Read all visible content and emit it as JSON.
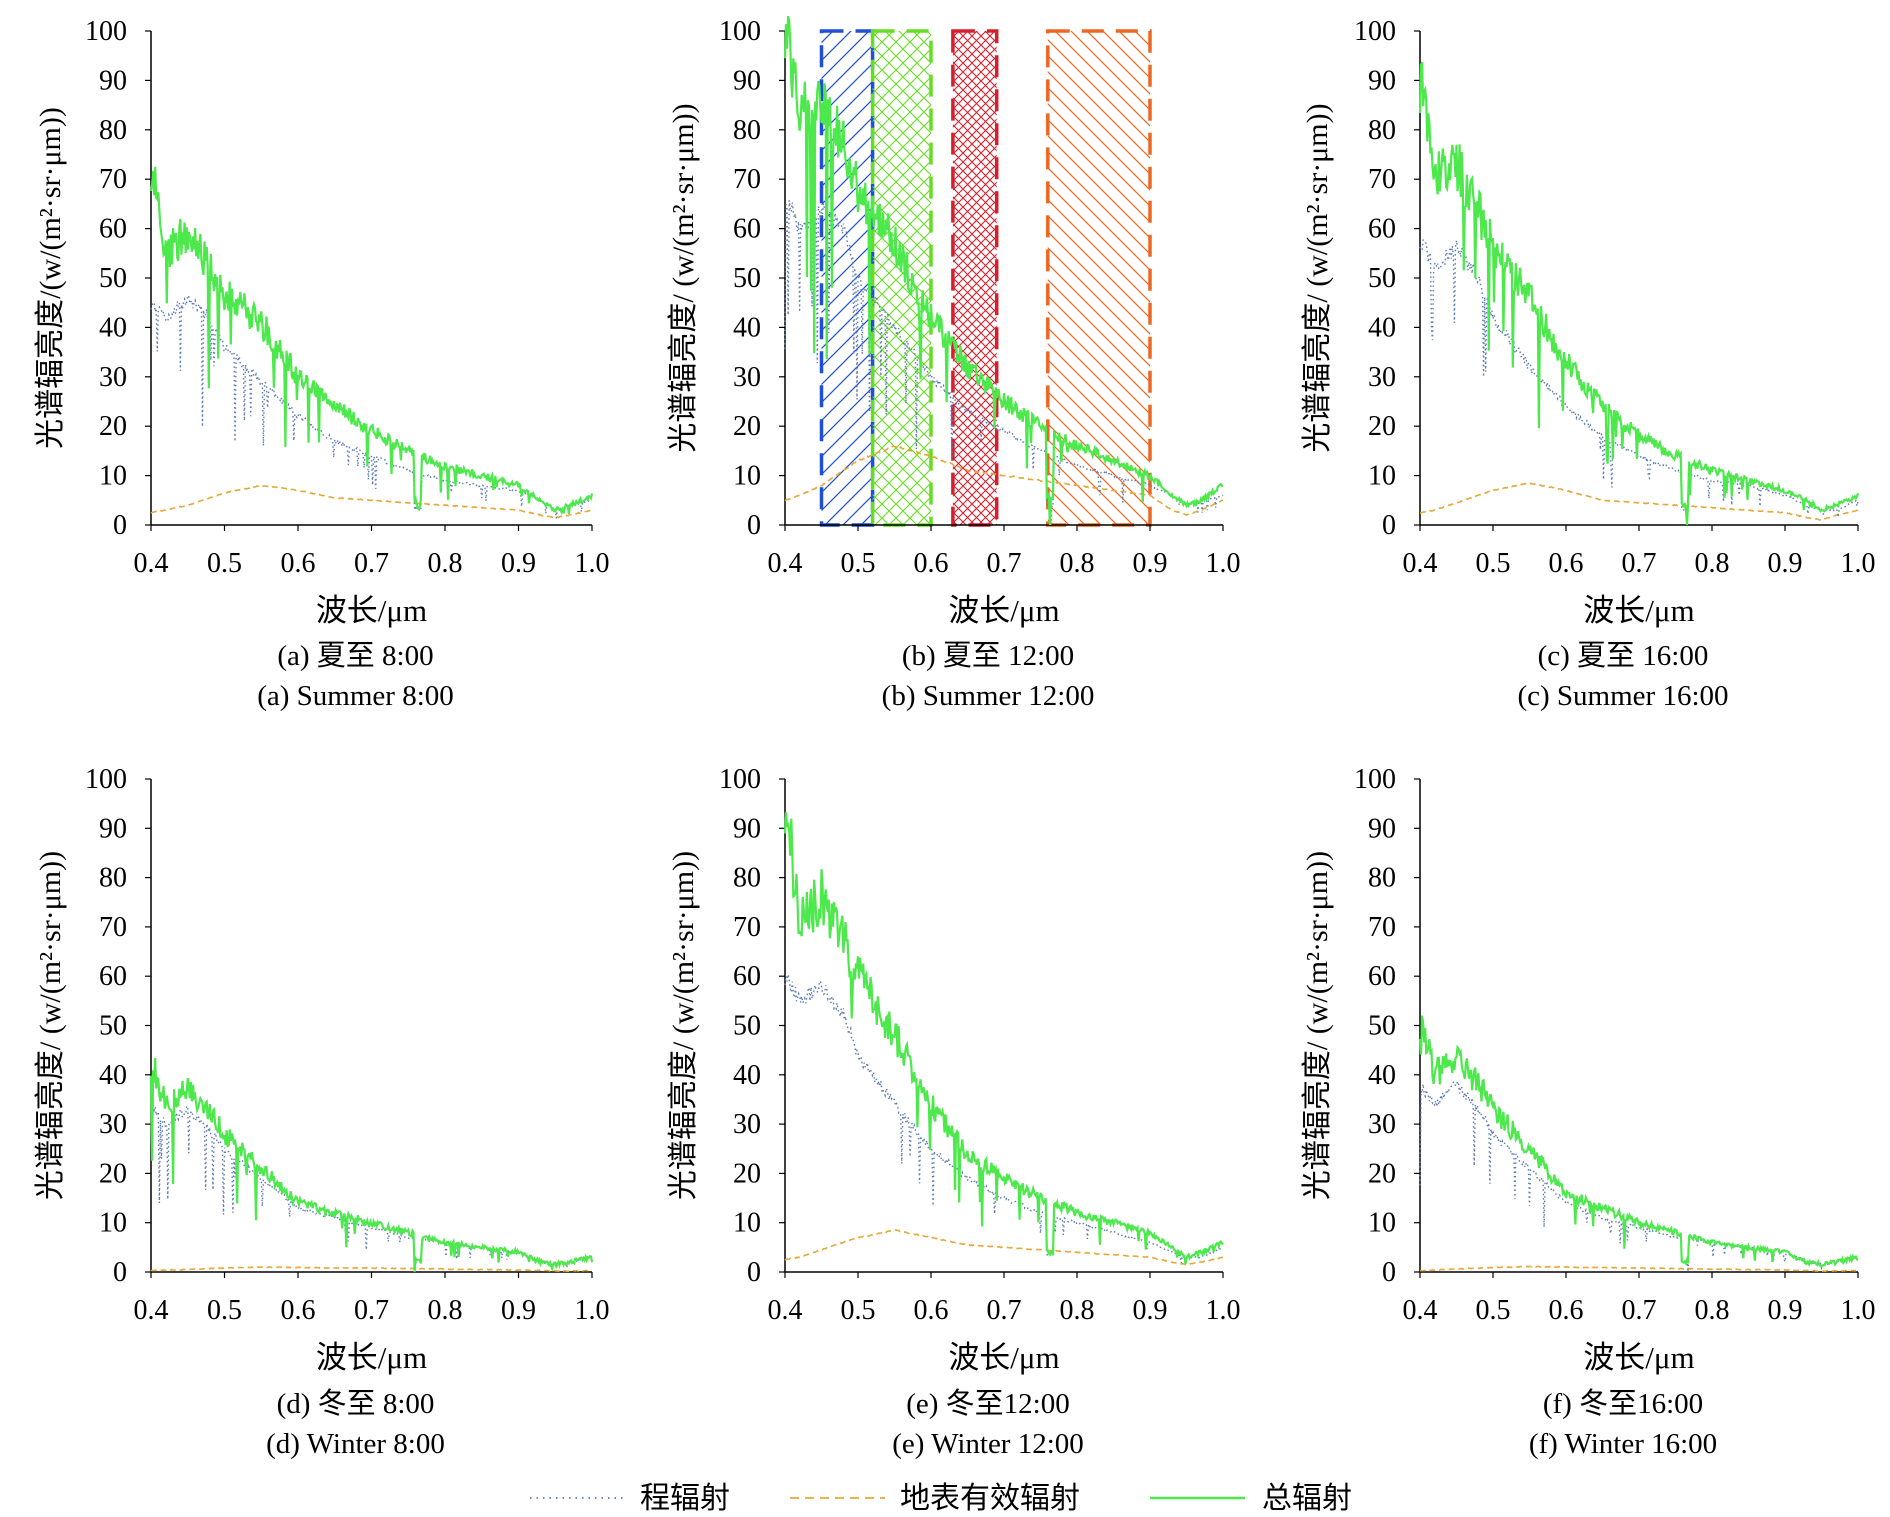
{
  "figure": {
    "legend": [
      {
        "label": "程辐射",
        "color": "#5b79b5",
        "style": "dotted"
      },
      {
        "label": "地表有效辐射",
        "color": "#e6a83a",
        "style": "dashed"
      },
      {
        "label": "总辐射",
        "color": "#4ce84c",
        "style": "solid"
      }
    ],
    "hatch_bands": [
      {
        "x_range": [
          0.45,
          0.52
        ],
        "color": "#1f4fd6",
        "pattern": "diagonal-forward"
      },
      {
        "x_range": [
          0.52,
          0.6
        ],
        "color": "#66dd22",
        "pattern": "crosshatch"
      },
      {
        "x_range": [
          0.63,
          0.69
        ],
        "color": "#d61f2c",
        "pattern": "crosshatch-dense"
      },
      {
        "x_range": [
          0.76,
          0.9
        ],
        "color": "#ee6622",
        "pattern": "diagonal-backward"
      }
    ]
  },
  "chart_data": [
    {
      "type": "line",
      "caption_zh": "(a) 夏至 8:00",
      "caption_en": "(a) Summer 8:00",
      "xlabel": "波长/μm",
      "ylabel": "光谱辐亮度/(w/(m²·sr·μm))",
      "xlim": [
        0.4,
        1.0
      ],
      "ylim": [
        0,
        100
      ],
      "xticks": [
        "0.4",
        "0.5",
        "0.6",
        "0.7",
        "0.8",
        "0.9",
        "1.0"
      ],
      "yticks": [
        "0",
        "10",
        "20",
        "30",
        "40",
        "50",
        "60",
        "70",
        "80",
        "90",
        "100"
      ],
      "x": [
        0.4,
        0.42,
        0.45,
        0.48,
        0.5,
        0.55,
        0.6,
        0.65,
        0.7,
        0.75,
        0.8,
        0.85,
        0.9,
        0.93,
        0.95,
        0.97,
        1.0
      ],
      "series": [
        {
          "name": "总辐射",
          "values": [
            73,
            55,
            59,
            52,
            47,
            41,
            30,
            24,
            19,
            15,
            12,
            10,
            8,
            5,
            3,
            4,
            6
          ]
        },
        {
          "name": "程辐射",
          "values": [
            45,
            42,
            46,
            42,
            36,
            29,
            22,
            17,
            14,
            11,
            9,
            8,
            7,
            5,
            3,
            4,
            5
          ]
        },
        {
          "name": "地表有效辐射",
          "values": [
            2.5,
            3,
            4,
            5.5,
            6.5,
            8,
            7,
            5.5,
            5,
            4.5,
            4,
            3.5,
            3,
            2,
            1.5,
            2,
            3
          ]
        }
      ]
    },
    {
      "type": "line",
      "caption_zh": "(b) 夏至 12:00",
      "caption_en": "(b) Summer 12:00",
      "xlabel": "波长/μm",
      "ylabel": "光谱辐亮度/ (w/(m²·sr·μm))",
      "xlim": [
        0.4,
        1.0
      ],
      "ylim": [
        0,
        100
      ],
      "xticks": [
        "0.4",
        "0.5",
        "0.6",
        "0.7",
        "0.8",
        "0.9",
        "1.0"
      ],
      "yticks": [
        "0",
        "10",
        "20",
        "30",
        "40",
        "50",
        "60",
        "70",
        "80",
        "90",
        "100"
      ],
      "x": [
        0.4,
        0.42,
        0.45,
        0.48,
        0.5,
        0.55,
        0.6,
        0.65,
        0.7,
        0.75,
        0.8,
        0.85,
        0.9,
        0.93,
        0.95,
        0.97,
        1.0
      ],
      "series": [
        {
          "name": "总辐射",
          "values": [
            102,
            84,
            85,
            77,
            68,
            57,
            42,
            32,
            25,
            20,
            16,
            13,
            10,
            6,
            4,
            5,
            8
          ]
        },
        {
          "name": "程辐射",
          "values": [
            67,
            60,
            64,
            60,
            50,
            40,
            30,
            23,
            19,
            15,
            12,
            10,
            8,
            6,
            4,
            5,
            6
          ]
        },
        {
          "name": "地表有效辐射",
          "values": [
            5,
            6,
            8,
            11,
            13,
            16,
            14,
            11,
            10,
            9,
            8,
            7,
            6,
            3,
            2,
            3,
            5
          ]
        }
      ]
    },
    {
      "type": "line",
      "caption_zh": "(c) 夏至 16:00",
      "caption_en": "(c) Summer 16:00",
      "xlabel": "波长/μm",
      "ylabel": "光谱辐亮度/ (w/(m²·sr·μm))",
      "xlim": [
        0.4,
        1.0
      ],
      "ylim": [
        0,
        100
      ],
      "xticks": [
        "0.4",
        "0.5",
        "0.6",
        "0.7",
        "0.8",
        "0.9",
        "1.0"
      ],
      "yticks": [
        "0",
        "10",
        "20",
        "30",
        "40",
        "50",
        "60",
        "70",
        "80",
        "90",
        "100"
      ],
      "x": [
        0.4,
        0.42,
        0.45,
        0.48,
        0.5,
        0.55,
        0.6,
        0.65,
        0.7,
        0.75,
        0.8,
        0.85,
        0.9,
        0.93,
        0.95,
        0.97,
        1.0
      ],
      "series": [
        {
          "name": "总辐射",
          "values": [
            90,
            72,
            73,
            64,
            56,
            46,
            33,
            24,
            18,
            14,
            11,
            9,
            7,
            5,
            3,
            4,
            6
          ]
        },
        {
          "name": "程辐射",
          "values": [
            58,
            52,
            56,
            50,
            42,
            32,
            24,
            18,
            14,
            11,
            9,
            8,
            6,
            4,
            3,
            3,
            5
          ]
        },
        {
          "name": "地表有效辐射",
          "values": [
            2.5,
            3,
            4.5,
            6,
            7,
            8.5,
            7,
            5,
            4.5,
            4,
            3.5,
            3,
            2.5,
            1.5,
            1,
            2,
            3
          ]
        }
      ]
    },
    {
      "type": "line",
      "caption_zh": "(d) 冬至 8:00",
      "caption_en": "(d) Winter 8:00",
      "xlabel": "波长/μm",
      "ylabel": "光谱辐亮度/ (w/(m²·sr·μm))",
      "xlim": [
        0.4,
        1.0
      ],
      "ylim": [
        0,
        100
      ],
      "xticks": [
        "0.4",
        "0.5",
        "0.6",
        "0.7",
        "0.8",
        "0.9",
        "1.0"
      ],
      "yticks": [
        "0",
        "10",
        "20",
        "30",
        "40",
        "50",
        "60",
        "70",
        "80",
        "90",
        "100"
      ],
      "x": [
        0.4,
        0.42,
        0.45,
        0.48,
        0.5,
        0.55,
        0.6,
        0.65,
        0.7,
        0.75,
        0.8,
        0.85,
        0.9,
        0.93,
        0.95,
        0.97,
        1.0
      ],
      "series": [
        {
          "name": "总辐射",
          "values": [
            43,
            34,
            37,
            32,
            28,
            21,
            14,
            12,
            10,
            8,
            6,
            5,
            4,
            2,
            1.5,
            2,
            3
          ]
        },
        {
          "name": "程辐射",
          "values": [
            34,
            30,
            33,
            29,
            25,
            19,
            13,
            11,
            9,
            7,
            6,
            5,
            4,
            2,
            1.5,
            2,
            3
          ]
        },
        {
          "name": "地表有效辐射",
          "values": [
            0.3,
            0.4,
            0.5,
            0.7,
            0.8,
            1.0,
            0.9,
            0.8,
            0.8,
            0.7,
            0.6,
            0.5,
            0.4,
            0.3,
            0.2,
            0.2,
            0.3
          ]
        }
      ]
    },
    {
      "type": "line",
      "caption_zh": "(e) 冬至12:00",
      "caption_en": "(e) Winter 12:00",
      "xlabel": "波长/μm",
      "ylabel": "光谱辐亮度/ (w/(m²·sr·μm))",
      "xlim": [
        0.4,
        1.0
      ],
      "ylim": [
        0,
        100
      ],
      "xticks": [
        "0.4",
        "0.5",
        "0.6",
        "0.7",
        "0.8",
        "0.9",
        "1.0"
      ],
      "yticks": [
        "0",
        "10",
        "20",
        "30",
        "40",
        "50",
        "60",
        "70",
        "80",
        "90",
        "100"
      ],
      "x": [
        0.4,
        0.42,
        0.45,
        0.48,
        0.5,
        0.55,
        0.6,
        0.65,
        0.7,
        0.75,
        0.8,
        0.85,
        0.9,
        0.93,
        0.95,
        0.97,
        1.0
      ],
      "series": [
        {
          "name": "总辐射",
          "values": [
            96,
            72,
            76,
            68,
            60,
            48,
            34,
            24,
            19,
            15,
            12,
            10,
            8,
            5,
            3,
            4,
            6
          ]
        },
        {
          "name": "程辐射",
          "values": [
            60,
            55,
            58,
            52,
            44,
            34,
            25,
            19,
            15,
            12,
            10,
            8,
            6,
            4,
            3,
            3,
            5
          ]
        },
        {
          "name": "地表有效辐射",
          "values": [
            2.5,
            3,
            4.5,
            6,
            7,
            8.5,
            7,
            5.5,
            5,
            4.5,
            4,
            3.5,
            3,
            2,
            1.5,
            2,
            3
          ]
        }
      ]
    },
    {
      "type": "line",
      "caption_zh": "(f) 冬至16:00",
      "caption_en": "(f) Winter 16:00",
      "xlabel": "波长/μm",
      "ylabel": "光谱辐亮度/ (w/(m²·sr·μm))",
      "xlim": [
        0.4,
        1.0
      ],
      "ylim": [
        0,
        100
      ],
      "xticks": [
        "0.4",
        "0.5",
        "0.6",
        "0.7",
        "0.8",
        "0.9",
        "1.0"
      ],
      "yticks": [
        "0",
        "10",
        "20",
        "30",
        "40",
        "50",
        "60",
        "70",
        "80",
        "90",
        "100"
      ],
      "x": [
        0.4,
        0.42,
        0.45,
        0.48,
        0.5,
        0.55,
        0.6,
        0.65,
        0.7,
        0.75,
        0.8,
        0.85,
        0.9,
        0.93,
        0.95,
        0.97,
        1.0
      ],
      "series": [
        {
          "name": "总辐射",
          "values": [
            51,
            40,
            44,
            38,
            33,
            25,
            16,
            13,
            10,
            8,
            6,
            5,
            4,
            2,
            1.5,
            2,
            3
          ]
        },
        {
          "name": "程辐射",
          "values": [
            38,
            34,
            38,
            33,
            28,
            21,
            14,
            11,
            9,
            7,
            6,
            5,
            4,
            2,
            1.5,
            2,
            3
          ]
        },
        {
          "name": "地表有效辐射",
          "values": [
            0.3,
            0.4,
            0.6,
            0.8,
            0.9,
            1.1,
            1.0,
            0.9,
            0.8,
            0.7,
            0.6,
            0.5,
            0.4,
            0.3,
            0.2,
            0.2,
            0.3
          ]
        }
      ]
    }
  ]
}
